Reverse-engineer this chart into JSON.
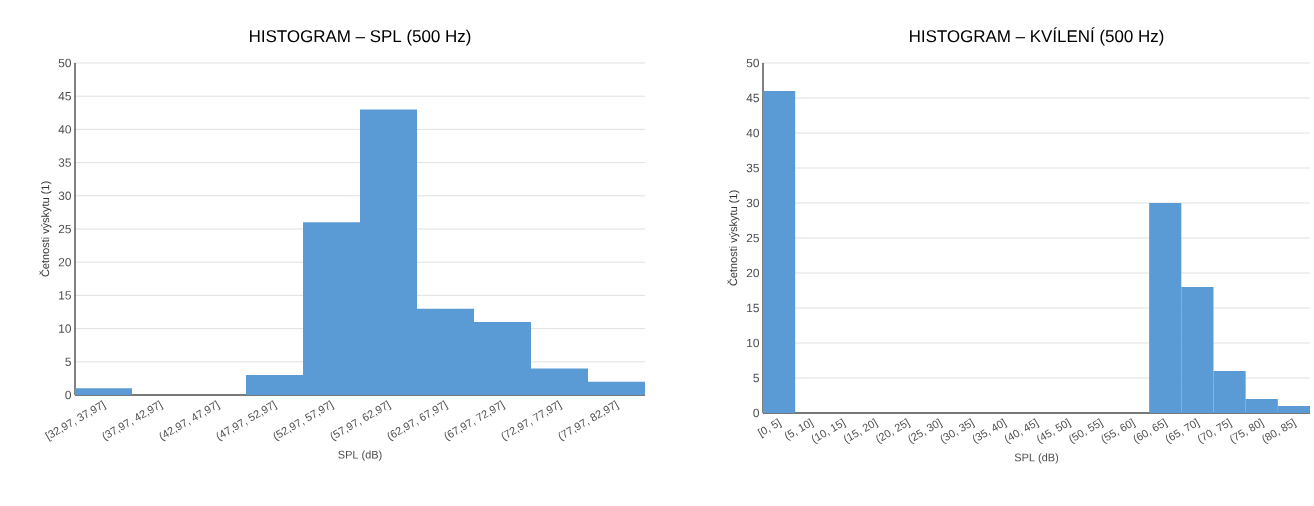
{
  "chart_data": [
    {
      "type": "bar",
      "title": "HISTOGRAM – SPL (500 Hz)",
      "xlabel": "SPL (dB)",
      "ylabel": "Četnosti výskytu (1)",
      "categories": [
        "[32,97, 37,97]",
        "(37,97, 42,97]",
        "(42,97, 47,97]",
        "(47,97, 52,97]",
        "(52,97, 57,97]",
        "(57,97, 62,97]",
        "(62,97, 67,97]",
        "(67,97, 72,97]",
        "(72,97, 77,97]",
        "(77,97, 82,97]"
      ],
      "values": [
        1,
        0,
        0,
        3,
        26,
        43,
        13,
        11,
        4,
        2
      ],
      "color": "#5b9bd5",
      "ylim": [
        0,
        50
      ],
      "yticks": [
        0,
        5,
        10,
        15,
        20,
        25,
        30,
        35,
        40,
        45,
        50
      ],
      "grid": "y"
    },
    {
      "type": "bar",
      "title": "HISTOGRAM – KVÍLENÍ (500 Hz)",
      "xlabel": "SPL (dB)",
      "ylabel": "Četnosti výskytu (1)",
      "categories": [
        "[0, 5]",
        "(5, 10]",
        "(10, 15]",
        "(15, 20]",
        "(20, 25]",
        "(25, 30]",
        "(30, 35]",
        "(35, 40]",
        "(40, 45]",
        "(45, 50]",
        "(50, 55]",
        "(55, 60]",
        "(60, 65]",
        "(65, 70]",
        "(70, 75]",
        "(75, 80]",
        "(80, 85]"
      ],
      "values": [
        46,
        0,
        0,
        0,
        0,
        0,
        0,
        0,
        0,
        0,
        0,
        0,
        30,
        18,
        6,
        2,
        1
      ],
      "color": "#5b9bd5",
      "ylim": [
        0,
        50
      ],
      "yticks": [
        0,
        5,
        10,
        15,
        20,
        25,
        30,
        35,
        40,
        45,
        50
      ],
      "grid": "y"
    }
  ]
}
